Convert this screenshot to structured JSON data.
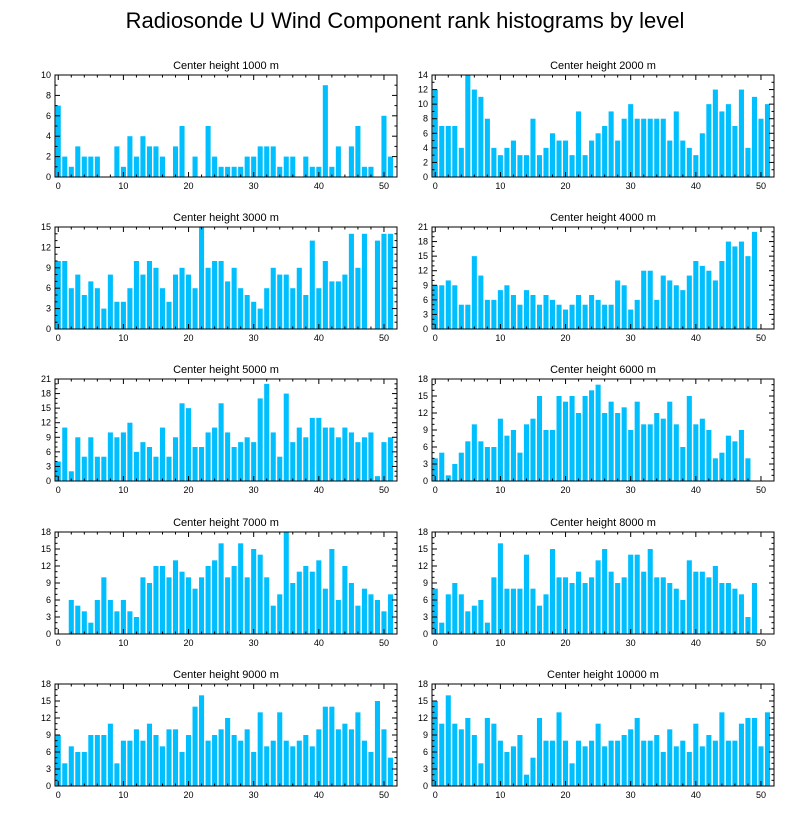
{
  "title": "Radiosonde U Wind Component rank histograms by level",
  "style": {
    "bar_color": "#00BFFF",
    "axis_color": "#000000"
  },
  "chart_data": [
    {
      "type": "bar",
      "title": "Center height 1000 m",
      "x_start": 0,
      "xlim": [
        -0.5,
        52
      ],
      "xticks": [
        0,
        10,
        20,
        30,
        40,
        50
      ],
      "ylim": [
        0,
        10
      ],
      "yticks": [
        0,
        2,
        4,
        6,
        8,
        10
      ],
      "values": [
        7,
        2,
        1,
        3,
        2,
        2,
        2,
        0,
        0,
        3,
        1,
        4,
        2,
        4,
        3,
        3,
        2,
        0,
        3,
        5,
        0,
        2,
        0,
        5,
        2,
        1,
        1,
        1,
        1,
        2,
        2,
        3,
        3,
        3,
        1,
        2,
        2,
        0,
        2,
        1,
        1,
        9,
        1,
        3,
        0,
        3,
        5,
        1,
        1,
        0,
        6,
        2
      ]
    },
    {
      "type": "bar",
      "title": "Center height 2000 m",
      "x_start": 0,
      "xlim": [
        -0.5,
        52
      ],
      "xticks": [
        0,
        10,
        20,
        30,
        40,
        50
      ],
      "ylim": [
        0,
        14
      ],
      "yticks": [
        0,
        2,
        4,
        6,
        8,
        10,
        12,
        14
      ],
      "values": [
        12,
        7,
        7,
        7,
        4,
        14,
        12,
        11,
        8,
        4,
        3,
        4,
        5,
        3,
        3,
        8,
        3,
        4,
        6,
        5,
        5,
        3,
        9,
        3,
        5,
        6,
        7,
        9,
        5,
        8,
        10,
        8,
        8,
        8,
        8,
        8,
        5,
        9,
        5,
        4,
        3,
        6,
        10,
        12,
        9,
        10,
        7,
        12,
        4,
        11,
        8,
        10
      ]
    },
    {
      "type": "bar",
      "title": "Center height 3000 m",
      "x_start": 0,
      "xlim": [
        -0.5,
        52
      ],
      "xticks": [
        0,
        10,
        20,
        30,
        40,
        50
      ],
      "ylim": [
        0,
        15
      ],
      "yticks": [
        0,
        3,
        6,
        9,
        12,
        15
      ],
      "values": [
        10,
        10,
        6,
        8,
        5,
        7,
        6,
        3,
        8,
        4,
        4,
        6,
        10,
        8,
        10,
        9,
        6,
        4,
        8,
        9,
        8,
        6,
        15,
        9,
        10,
        10,
        7,
        9,
        6,
        5,
        4,
        3,
        6,
        9,
        8,
        8,
        6,
        9,
        5,
        13,
        6,
        10,
        7,
        7,
        8,
        14,
        9,
        14,
        0,
        13,
        14,
        14
      ]
    },
    {
      "type": "bar",
      "title": "Center height 4000 m",
      "x_start": 0,
      "xlim": [
        -0.5,
        52
      ],
      "xticks": [
        0,
        10,
        20,
        30,
        40,
        50
      ],
      "ylim": [
        0,
        21
      ],
      "yticks": [
        0,
        3,
        6,
        9,
        12,
        15,
        18,
        21
      ],
      "values": [
        9,
        9,
        10,
        9,
        5,
        5,
        15,
        11,
        6,
        6,
        8,
        9,
        7,
        5,
        8,
        7,
        5,
        7,
        6,
        5,
        4,
        5,
        7,
        5,
        7,
        6,
        5,
        5,
        10,
        9,
        4,
        6,
        12,
        12,
        6,
        11,
        10,
        9,
        8,
        11,
        14,
        13,
        12,
        10,
        14,
        18,
        17,
        18,
        15,
        20
      ]
    },
    {
      "type": "bar",
      "title": "Center height 5000 m",
      "x_start": 0,
      "xlim": [
        -0.5,
        52
      ],
      "xticks": [
        0,
        10,
        20,
        30,
        40,
        50
      ],
      "ylim": [
        0,
        21
      ],
      "yticks": [
        0,
        3,
        6,
        9,
        12,
        15,
        18,
        21
      ],
      "values": [
        4,
        11,
        2,
        9,
        5,
        9,
        5,
        5,
        10,
        9,
        10,
        12,
        6,
        8,
        7,
        5,
        11,
        5,
        9,
        16,
        15,
        7,
        7,
        10,
        11,
        16,
        10,
        7,
        8,
        9,
        8,
        17,
        20,
        10,
        5,
        18,
        8,
        11,
        9,
        13,
        13,
        11,
        11,
        9,
        11,
        10,
        8,
        9,
        10,
        1,
        8,
        9
      ]
    },
    {
      "type": "bar",
      "title": "Center height 6000 m",
      "x_start": 0,
      "xlim": [
        -0.5,
        52
      ],
      "xticks": [
        0,
        10,
        20,
        30,
        40,
        50
      ],
      "ylim": [
        0,
        18
      ],
      "yticks": [
        0,
        3,
        6,
        9,
        12,
        15,
        18
      ],
      "values": [
        4,
        5,
        1,
        3,
        5,
        7,
        10,
        7,
        6,
        6,
        11,
        8,
        9,
        5,
        10,
        11,
        15,
        9,
        9,
        15,
        14,
        15,
        12,
        15,
        16,
        17,
        12,
        14,
        12,
        13,
        9,
        14,
        10,
        10,
        12,
        11,
        14,
        10,
        6,
        15,
        10,
        11,
        9,
        4,
        5,
        8,
        7,
        9,
        4
      ]
    },
    {
      "type": "bar",
      "title": "Center height 7000 m",
      "x_start": 2,
      "xlim": [
        -0.5,
        52
      ],
      "xticks": [
        0,
        10,
        20,
        30,
        40,
        50
      ],
      "ylim": [
        0,
        18
      ],
      "yticks": [
        0,
        3,
        6,
        9,
        12,
        15,
        18
      ],
      "values": [
        6,
        5,
        4,
        2,
        6,
        10,
        6,
        4,
        6,
        4,
        3,
        10,
        9,
        12,
        12,
        10,
        13,
        11,
        10,
        8,
        10,
        12,
        13,
        16,
        10,
        12,
        16,
        10,
        15,
        14,
        10,
        5,
        7,
        18,
        9,
        11,
        12,
        11,
        13,
        8,
        15,
        6,
        12,
        9,
        5,
        8,
        7,
        6,
        4,
        7
      ]
    },
    {
      "type": "bar",
      "title": "Center height 8000 m",
      "x_start": 0,
      "xlim": [
        -0.5,
        52
      ],
      "xticks": [
        0,
        10,
        20,
        30,
        40,
        50
      ],
      "ylim": [
        0,
        18
      ],
      "yticks": [
        0,
        3,
        6,
        9,
        12,
        15,
        18
      ],
      "values": [
        8,
        2,
        7,
        9,
        7,
        4,
        5,
        6,
        2,
        10,
        16,
        8,
        8,
        8,
        14,
        8,
        5,
        7,
        15,
        10,
        10,
        9,
        11,
        9,
        10,
        13,
        15,
        11,
        9,
        10,
        14,
        14,
        11,
        15,
        10,
        10,
        9,
        8,
        6,
        13,
        11,
        11,
        10,
        12,
        9,
        9,
        8,
        7,
        3,
        9
      ]
    },
    {
      "type": "bar",
      "title": "Center height 9000 m",
      "x_start": 0,
      "xlim": [
        -0.5,
        52
      ],
      "xticks": [
        0,
        10,
        20,
        30,
        40,
        50
      ],
      "ylim": [
        0,
        18
      ],
      "yticks": [
        0,
        3,
        6,
        9,
        12,
        15,
        18
      ],
      "values": [
        9,
        4,
        7,
        6,
        6,
        9,
        9,
        9,
        11,
        4,
        8,
        8,
        10,
        8,
        11,
        9,
        7,
        10,
        10,
        6,
        9,
        14,
        16,
        8,
        9,
        10,
        12,
        9,
        8,
        10,
        6,
        13,
        7,
        8,
        13,
        8,
        7,
        8,
        9,
        7,
        10,
        14,
        14,
        10,
        11,
        10,
        13,
        8,
        6,
        15,
        10,
        5
      ]
    },
    {
      "type": "bar",
      "title": "Center height 10000 m",
      "x_start": 0,
      "xlim": [
        -0.5,
        52
      ],
      "xticks": [
        0,
        10,
        20,
        30,
        40,
        50
      ],
      "ylim": [
        0,
        18
      ],
      "yticks": [
        0,
        3,
        6,
        9,
        12,
        15,
        18
      ],
      "values": [
        15,
        11,
        16,
        11,
        10,
        12,
        9,
        4,
        12,
        11,
        8,
        6,
        7,
        9,
        2,
        5,
        12,
        8,
        8,
        13,
        8,
        4,
        8,
        7,
        8,
        11,
        7,
        8,
        8,
        9,
        10,
        12,
        8,
        8,
        9,
        6,
        10,
        7,
        8,
        6,
        11,
        7,
        9,
        8,
        13,
        8,
        8,
        11,
        12,
        12,
        7,
        13
      ]
    }
  ]
}
